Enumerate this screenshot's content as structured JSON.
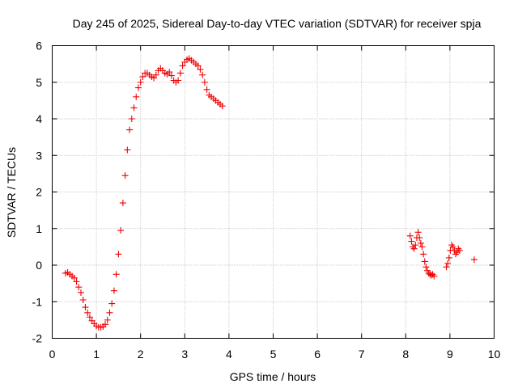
{
  "chart_data": {
    "type": "scatter",
    "title": "Day 245 of 2025, Sidereal Day-to-day VTEC variation (SDTVAR) for receiver spja",
    "xlabel": "GPS time / hours",
    "ylabel": "SDTVAR / TECUs",
    "xlim": [
      0,
      10
    ],
    "ylim": [
      -2,
      6
    ],
    "xticks": [
      "0",
      "1",
      "2",
      "3",
      "4",
      "5",
      "6",
      "7",
      "8",
      "9",
      "10"
    ],
    "yticks": [
      "-2",
      "-1",
      "0",
      "1",
      "2",
      "3",
      "4",
      "5",
      "6"
    ],
    "grid": true,
    "marker": "+",
    "color": "#ee0000",
    "segments": [
      {
        "name": "segment-1",
        "x": [
          0.3,
          0.35,
          0.4,
          0.45,
          0.5,
          0.55,
          0.6,
          0.65,
          0.7,
          0.75,
          0.8,
          0.85,
          0.9,
          0.95,
          1.0,
          1.05,
          1.1,
          1.15,
          1.2,
          1.25,
          1.3,
          1.35,
          1.4,
          1.45,
          1.5,
          1.55,
          1.6,
          1.65,
          1.7,
          1.75,
          1.8,
          1.85,
          1.9,
          1.95,
          2.0,
          2.05,
          2.1,
          2.15,
          2.2,
          2.25,
          2.3,
          2.35,
          2.4,
          2.45,
          2.5,
          2.55,
          2.6,
          2.65,
          2.7,
          2.75,
          2.8,
          2.85,
          2.9,
          2.95,
          3.0,
          3.05,
          3.1,
          3.15,
          3.2,
          3.25,
          3.3,
          3.35,
          3.4,
          3.45,
          3.5,
          3.55,
          3.6,
          3.65,
          3.7,
          3.75,
          3.8,
          3.85
        ],
        "y": [
          -0.22,
          -0.2,
          -0.25,
          -0.3,
          -0.35,
          -0.45,
          -0.6,
          -0.75,
          -0.95,
          -1.15,
          -1.3,
          -1.42,
          -1.52,
          -1.6,
          -1.66,
          -1.7,
          -1.7,
          -1.68,
          -1.62,
          -1.5,
          -1.3,
          -1.05,
          -0.7,
          -0.25,
          0.3,
          0.95,
          1.7,
          2.45,
          3.15,
          3.7,
          4.0,
          4.3,
          4.6,
          4.85,
          5.0,
          5.15,
          5.25,
          5.25,
          5.2,
          5.15,
          5.12,
          5.2,
          5.32,
          5.38,
          5.32,
          5.25,
          5.22,
          5.28,
          5.18,
          5.05,
          5.0,
          5.05,
          5.25,
          5.45,
          5.55,
          5.62,
          5.65,
          5.6,
          5.55,
          5.5,
          5.45,
          5.35,
          5.2,
          5.0,
          4.8,
          4.65,
          4.6,
          4.55,
          4.5,
          4.45,
          4.4,
          4.35
        ]
      },
      {
        "name": "segment-2",
        "x": [
          8.1,
          8.13,
          8.16,
          8.19,
          8.22,
          8.25,
          8.28,
          8.31,
          8.34,
          8.37,
          8.4,
          8.43,
          8.46,
          8.49,
          8.52,
          8.55,
          8.58,
          8.61,
          8.64
        ],
        "y": [
          0.8,
          0.65,
          0.5,
          0.45,
          0.55,
          0.75,
          0.9,
          0.75,
          0.6,
          0.5,
          0.3,
          0.1,
          -0.05,
          -0.15,
          -0.22,
          -0.25,
          -0.28,
          -0.25,
          -0.3
        ]
      },
      {
        "name": "segment-3",
        "x": [
          8.92,
          8.95,
          8.98,
          9.01,
          9.04,
          9.07,
          9.1,
          9.13,
          9.16,
          9.19,
          9.22
        ],
        "y": [
          -0.05,
          0.05,
          0.2,
          0.4,
          0.55,
          0.5,
          0.4,
          0.3,
          0.35,
          0.45,
          0.4
        ]
      },
      {
        "name": "segment-4",
        "x": [
          9.55
        ],
        "y": [
          0.15
        ]
      }
    ]
  }
}
